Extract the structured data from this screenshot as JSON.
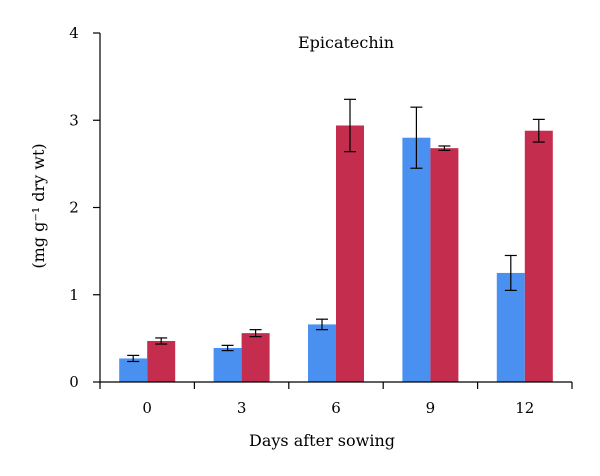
{
  "chart_data": {
    "type": "bar",
    "title": "Epicatechin",
    "xlabel": "Days after sowing",
    "ylabel": "(mg g⁻¹ dry wt)",
    "ylim": [
      0,
      4
    ],
    "yticks": [
      0,
      1,
      2,
      3,
      4
    ],
    "categories": [
      "0",
      "3",
      "6",
      "9",
      "12"
    ],
    "grid": false,
    "legend": "none",
    "series": [
      {
        "color": "#4a90f0",
        "values": [
          0.27,
          0.39,
          0.66,
          2.8,
          1.25
        ],
        "errors": [
          0.035,
          0.03,
          0.06,
          0.35,
          0.2
        ]
      },
      {
        "color": "#c42d4d",
        "values": [
          0.47,
          0.56,
          2.94,
          2.68,
          2.88
        ],
        "errors": [
          0.035,
          0.04,
          0.3,
          0.025,
          0.13
        ]
      }
    ]
  }
}
